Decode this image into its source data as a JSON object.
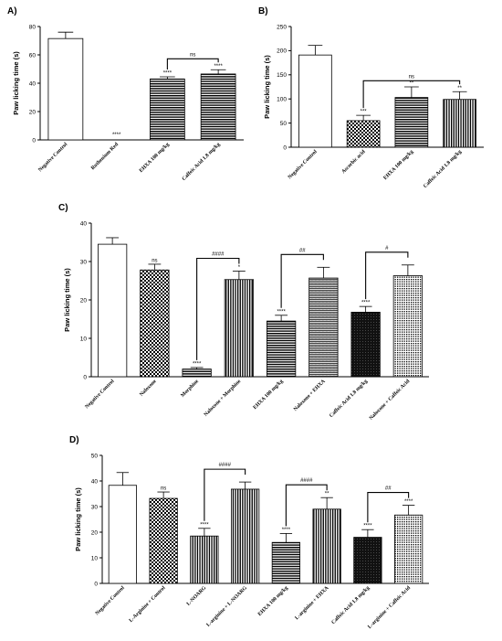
{
  "chart_data": [
    {
      "panel": "A)",
      "type": "bar",
      "ylabel": "Paw licking time (s)",
      "ylim": [
        0,
        80
      ],
      "yticks": [
        "0",
        "20",
        "40",
        "60",
        "80"
      ],
      "categories": [
        "Negative Control",
        "Ruthenium Red",
        "EHXA 100 mg/kg",
        "Caffeic Acid 1.8 mg/kg"
      ],
      "values": [
        71.5,
        0,
        43,
        46.5
      ],
      "errors": [
        4.5,
        0,
        1.5,
        3
      ],
      "patterns": [
        "blank",
        "blank",
        "hstripe",
        "hstripe"
      ],
      "significance": [
        "",
        "****",
        "****",
        "****"
      ],
      "comparisons": [
        {
          "from": 2,
          "to": 3,
          "label": "ns"
        }
      ]
    },
    {
      "panel": "B)",
      "type": "bar",
      "ylabel": "Paw licking time (s)",
      "ylim": [
        0,
        250
      ],
      "yticks": [
        "0",
        "50",
        "100",
        "150",
        "200",
        "250"
      ],
      "categories": [
        "Negative Control",
        "Ascorbic acid",
        "EHXA 100 mg/kg",
        "Caffeic Acid 1.8 mg/kg"
      ],
      "values": [
        191,
        55,
        103,
        99
      ],
      "errors": [
        20,
        11,
        22,
        16
      ],
      "patterns": [
        "blank",
        "checker",
        "hstripe",
        "vstripe"
      ],
      "significance": [
        "",
        "***",
        "**",
        "**"
      ],
      "comparisons": [
        {
          "from": 1,
          "to": 3,
          "label": "ns"
        }
      ]
    },
    {
      "panel": "C)",
      "type": "bar",
      "ylabel": "Paw licking time (s)",
      "ylim": [
        0,
        40
      ],
      "yticks": [
        "0",
        "10",
        "20",
        "30",
        "40"
      ],
      "categories": [
        "Negative Control",
        "Naloxone",
        "Morphine",
        "Naloxone + Morphine",
        "EHXA 100 mg/kg",
        "Naloxone + EHXA",
        "Caffeic Acid 1.8 mg/kg",
        "Naloxone + Caffeic Acid"
      ],
      "values": [
        34.5,
        27.8,
        2,
        25.3,
        14.5,
        25.7,
        16.8,
        26.3
      ],
      "errors": [
        1.7,
        1.5,
        0.4,
        2.2,
        1.5,
        2.8,
        1.5,
        2.8
      ],
      "patterns": [
        "blank",
        "checker",
        "hstripe",
        "vstripe",
        "hstripe",
        "zigzag",
        "dark",
        "dotted"
      ],
      "significance": [
        "",
        "ns",
        "****",
        "*",
        "****",
        "",
        "****",
        ""
      ],
      "comparisons": [
        {
          "from": 2,
          "to": 3,
          "label": "####"
        },
        {
          "from": 4,
          "to": 5,
          "label": "##"
        },
        {
          "from": 6,
          "to": 7,
          "label": "#"
        }
      ]
    },
    {
      "panel": "D)",
      "type": "bar",
      "ylabel": "Paw licking time (s)",
      "ylim": [
        0,
        50
      ],
      "yticks": [
        "0",
        "10",
        "20",
        "30",
        "40",
        "50"
      ],
      "categories": [
        "Negative Control",
        "L-Arginine + Control",
        "L-NOARG",
        "L-arginine + L-NOARG",
        "EHXA 100 mg/kg",
        "L-arginine + EHXA",
        "Caffeic Acid 1.8 mg/kg",
        "L-arginine + Caffeic Acid"
      ],
      "values": [
        38.3,
        33.2,
        18.5,
        36.8,
        16,
        29,
        18,
        26.7
      ],
      "errors": [
        5,
        2.5,
        3,
        2.8,
        3.5,
        4.5,
        3,
        3.8
      ],
      "patterns": [
        "blank",
        "checker",
        "vstripe",
        "vstripe",
        "hstripe",
        "vstripe",
        "dark",
        "dotted"
      ],
      "significance": [
        "",
        "ns",
        "****",
        "",
        "****",
        "**",
        "****",
        "****"
      ],
      "comparisons": [
        {
          "from": 2,
          "to": 3,
          "label": "####"
        },
        {
          "from": 4,
          "to": 5,
          "label": "####"
        },
        {
          "from": 6,
          "to": 7,
          "label": "##"
        }
      ]
    }
  ]
}
